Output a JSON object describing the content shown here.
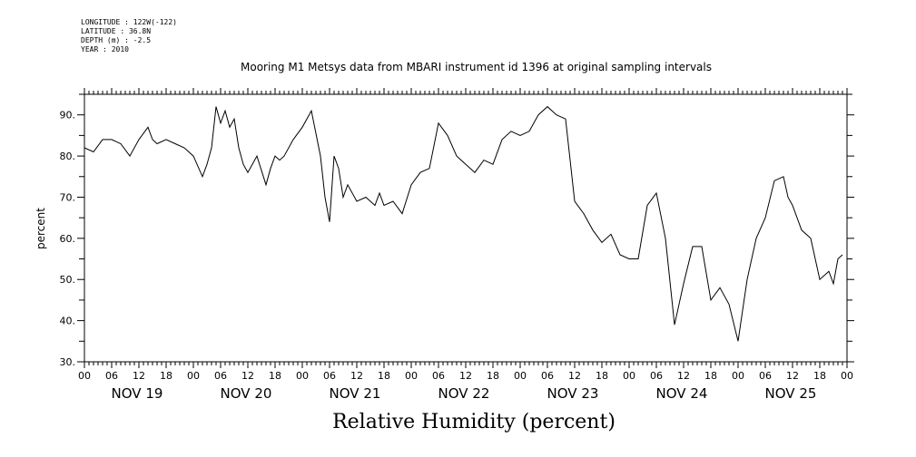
{
  "header": {
    "longitude": "LONGITUDE : 122W(-122)",
    "latitude": "LATITUDE : 36.8N",
    "depth": "DEPTH (m) : -2.5",
    "year": "YEAR : 2010"
  },
  "chart_data": {
    "type": "line",
    "title": "Mooring M1 Metsys data from MBARI instrument id 1396 at original sampling intervals",
    "xlabel": "Relative Humidity (percent)",
    "ylabel": "percent",
    "ylim": [
      30,
      95
    ],
    "y_ticks": [
      30,
      40,
      50,
      60,
      70,
      80,
      90
    ],
    "y_tick_labels": [
      "30.",
      "40.",
      "50.",
      "60.",
      "70.",
      "80.",
      "90."
    ],
    "xlim_hours": [
      0,
      168
    ],
    "x_hour_labels": [
      "00",
      "06",
      "12",
      "18",
      "00",
      "06",
      "12",
      "18",
      "00",
      "06",
      "12",
      "18",
      "00",
      "06",
      "12",
      "18",
      "00",
      "06",
      "12",
      "18",
      "00",
      "06",
      "12",
      "18",
      "00",
      "06",
      "12",
      "18",
      "00"
    ],
    "day_labels": [
      "NOV 19",
      "NOV 20",
      "NOV 21",
      "NOV 22",
      "NOV 23",
      "NOV 24",
      "NOV 25"
    ],
    "grid": false,
    "series": [
      {
        "color": "#000000",
        "x_hours": [
          0,
          2,
          4,
          6,
          8,
          10,
          12,
          14,
          15,
          16,
          18,
          20,
          22,
          24,
          26,
          27,
          28,
          29,
          30,
          31,
          32,
          33,
          34,
          35,
          36,
          38,
          40,
          41,
          42,
          43,
          44,
          46,
          48,
          50,
          52,
          53,
          54,
          54.5,
          55,
          56,
          57,
          58,
          60,
          62,
          64,
          65,
          66,
          68,
          70,
          72,
          74,
          76,
          78,
          80,
          82,
          84,
          86,
          88,
          90,
          92,
          94,
          96,
          98,
          100,
          102,
          104,
          106,
          108,
          110,
          112,
          114,
          116,
          118,
          120,
          122,
          124,
          126,
          128,
          130,
          132,
          134,
          136,
          138,
          140,
          142,
          144,
          146,
          148,
          150,
          152,
          154,
          155,
          156,
          158,
          160,
          162,
          164,
          165,
          166,
          167
        ],
        "values": [
          82,
          81,
          84,
          84,
          83,
          80,
          84,
          87,
          84,
          83,
          84,
          83,
          82,
          80,
          75,
          78,
          82,
          92,
          88,
          91,
          87,
          89,
          82,
          78,
          76,
          80,
          73,
          77,
          80,
          79,
          80,
          84,
          87,
          91,
          80,
          70,
          64,
          72,
          80,
          77,
          70,
          73,
          69,
          70,
          68,
          71,
          68,
          69,
          66,
          73,
          76,
          77,
          88,
          85,
          80,
          78,
          76,
          79,
          78,
          84,
          86,
          85,
          86,
          90,
          92,
          90,
          89,
          69,
          66,
          62,
          59,
          61,
          56,
          55,
          55,
          68,
          71,
          60,
          39,
          49,
          58,
          58,
          45,
          48,
          44,
          35,
          50,
          60,
          65,
          74,
          75,
          70,
          68,
          62,
          60,
          50,
          52,
          49,
          55,
          56
        ]
      }
    ]
  }
}
